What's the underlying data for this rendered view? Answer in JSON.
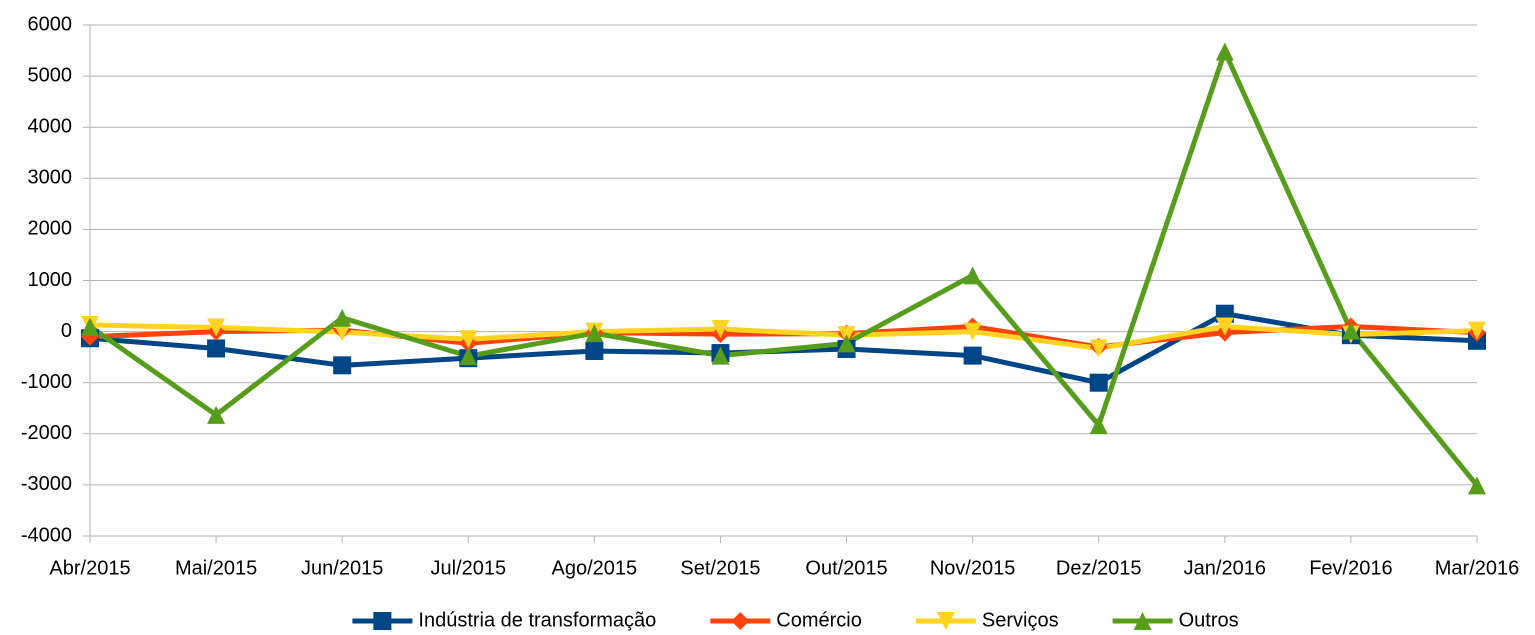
{
  "chart_data": {
    "type": "line",
    "categories": [
      "Abr/2015",
      "Mai/2015",
      "Jun/2015",
      "Jul/2015",
      "Ago/2015",
      "Set/2015",
      "Out/2015",
      "Nov/2015",
      "Dez/2015",
      "Jan/2016",
      "Fev/2016",
      "Mar/2016"
    ],
    "series": [
      {
        "name": "Indústria de transformação",
        "color": "#004586",
        "marker": "square",
        "values": [
          -130,
          -330,
          -660,
          -520,
          -380,
          -420,
          -340,
          -470,
          -1000,
          350,
          -70,
          -180
        ]
      },
      {
        "name": "Comércio",
        "color": "#ff420e",
        "marker": "diamond",
        "values": [
          -100,
          0,
          30,
          -230,
          -20,
          -50,
          -40,
          100,
          -300,
          -20,
          100,
          -20
        ]
      },
      {
        "name": "Serviços",
        "color": "#ffd320",
        "marker": "triangle-down",
        "values": [
          130,
          80,
          -10,
          -150,
          0,
          50,
          -70,
          0,
          -330,
          100,
          -60,
          20
        ]
      },
      {
        "name": "Outros",
        "color": "#579d1c",
        "marker": "triangle-up",
        "values": [
          100,
          -1630,
          270,
          -480,
          -30,
          -470,
          -230,
          1100,
          -1830,
          5480,
          20,
          -3010
        ]
      }
    ],
    "ylim": [
      -4000,
      6000
    ],
    "yticks": [
      -4000,
      -3000,
      -2000,
      -1000,
      0,
      1000,
      2000,
      3000,
      4000,
      5000,
      6000
    ],
    "grid": true,
    "legend": "bottom"
  }
}
